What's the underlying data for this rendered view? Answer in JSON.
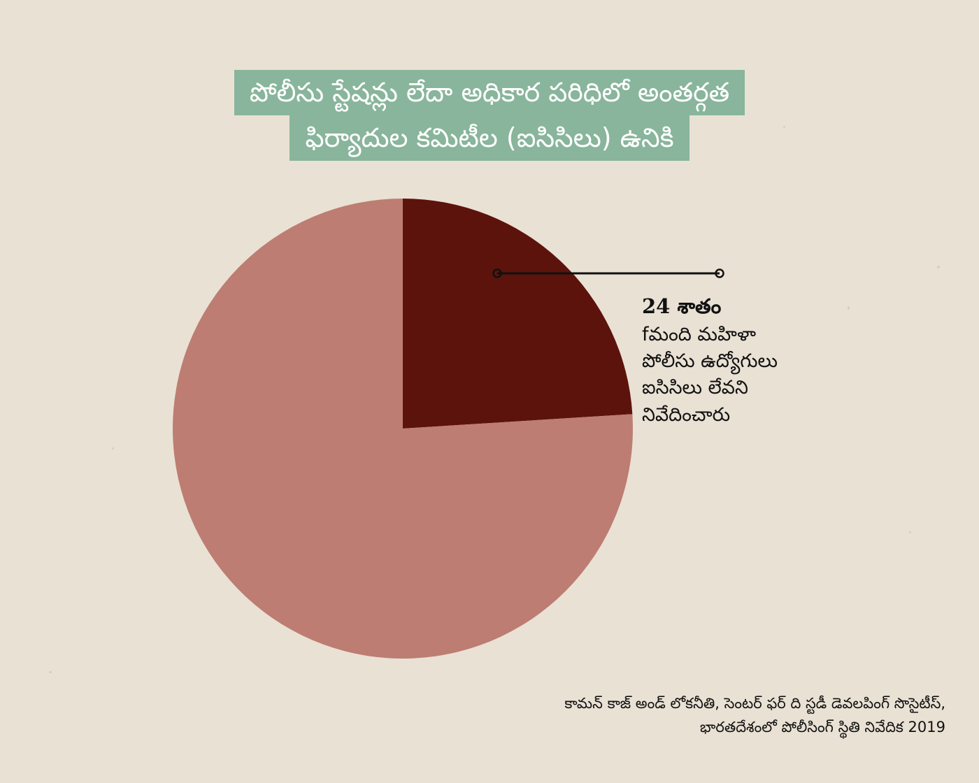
{
  "title": {
    "line1": "పోలీసు స్టేషన్లు లేదా అధికార పరిధిలో అంతర్గత",
    "line2": "ఫిర్యాదుల కమిటీల (ఐసిసిలు) ఉనికి"
  },
  "chart_data": {
    "type": "pie",
    "slices": [
      {
        "value": 24,
        "color": "#5c130c"
      },
      {
        "value": 76,
        "color": "#bd7d72"
      }
    ],
    "annotation": {
      "percent_label": "24 శాతం",
      "description_lines": [
        "fమంది మహిళా",
        "పోలీసు ఉద్యోగులు",
        "ఐసిసిలు లేవని",
        "నివేదించారు"
      ]
    }
  },
  "source": {
    "line1": "కామన్ కాజ్ అండ్ లోకనీతి, సెంటర్ ఫర్ ది స్టడీ డెవలపింగ్ సొసైటీస్,",
    "line2": "భారతదేశంలో పోలీసింగ్ స్థితి నివేదిక 2019"
  },
  "colors": {
    "background": "#e9e1d4",
    "title_bg": "#88b59b",
    "leader_line": "#111111"
  }
}
